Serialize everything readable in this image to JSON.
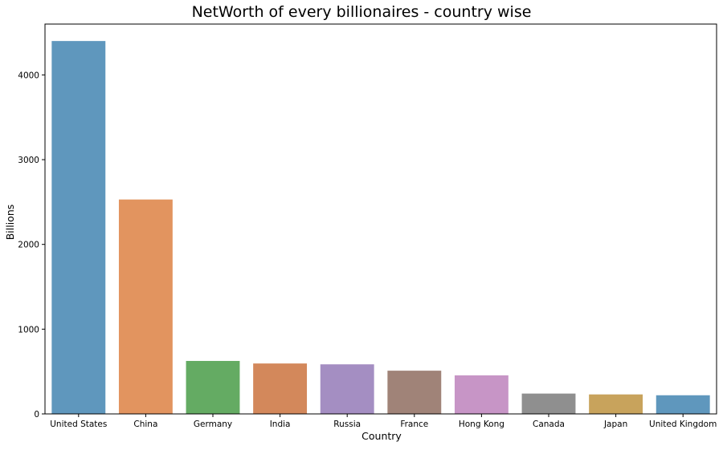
{
  "chart_data": {
    "type": "bar",
    "title": "NetWorth of every billionaires - country wise",
    "xlabel": "Country",
    "ylabel": "Billions",
    "categories": [
      "United States",
      "China",
      "Germany",
      "India",
      "Russia",
      "France",
      "Hong Kong",
      "Canada",
      "Japan",
      "United Kingdom"
    ],
    "values": [
      4400,
      2530,
      625,
      595,
      585,
      510,
      455,
      240,
      230,
      220
    ],
    "colors": [
      "#5f97bd",
      "#e2945f",
      "#64ab63",
      "#d3885b",
      "#a48ec2",
      "#a08378",
      "#c795c6",
      "#8f8f8f",
      "#c8a35c",
      "#5f97bd"
    ],
    "ylim": [
      0,
      4600
    ],
    "yticks": [
      0,
      1000,
      2000,
      3000,
      4000
    ],
    "grid": false,
    "legend": "none"
  }
}
